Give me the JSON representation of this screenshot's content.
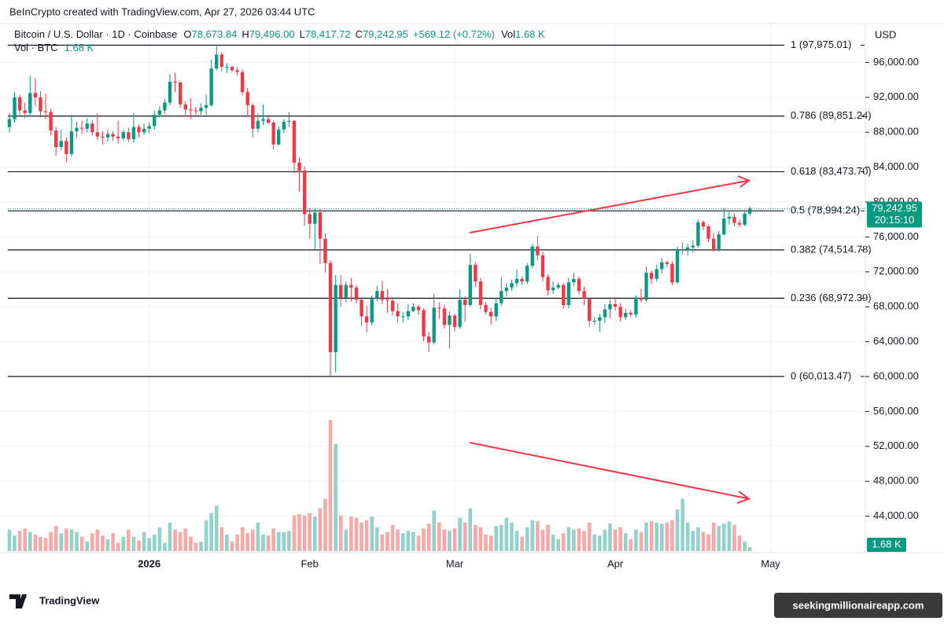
{
  "attribution": "BeInCrypto created with TradingView.com, Apr 27, 2026 03:44 UTC",
  "symbol": "Bitcoin / U.S. Dollar · 1D · Coinbase",
  "ohlc": [
    {
      "label": "O",
      "value": "78,673.84"
    },
    {
      "label": "H",
      "value": "79,496.00"
    },
    {
      "label": "L",
      "value": "78,417.72"
    },
    {
      "label": "C",
      "value": "79,242.95"
    }
  ],
  "change": "+569.12 (+0.72%)",
  "vol_label": "Vol",
  "vol_value": "1.68 K",
  "volume_indicator": {
    "label": "Vol · BTC",
    "value": "1.68 K"
  },
  "currency": "USD",
  "price_tag": "79,242.95",
  "countdown": "20:15:10",
  "volume_tag": "1.68 K",
  "logo_text": "TradingView",
  "watermark": "seekingmillionaireapp.com",
  "chart_data": {
    "type": "candlestick",
    "up_color": "#089981",
    "down_color": "#f23645",
    "up_volume_color": "#92d2cb",
    "down_volume_color": "#f7a9a7",
    "last_price_color": "#089981",
    "grid": true,
    "ylim": [
      40000,
      100000
    ],
    "yticks": [
      {
        "value": 96000,
        "label": "96,000.00"
      },
      {
        "value": 92000,
        "label": "92,000.00"
      },
      {
        "value": 88000,
        "label": "88,000.00"
      },
      {
        "value": 84000,
        "label": "84,000.00"
      },
      {
        "value": 80000,
        "label": "80,000.00"
      },
      {
        "value": 76000,
        "label": "76,000.00"
      },
      {
        "value": 72000,
        "label": "72,000.00"
      },
      {
        "value": 68000,
        "label": "68,000.00"
      },
      {
        "value": 64000,
        "label": "64,000.00"
      },
      {
        "value": 60000,
        "label": "60,000.00"
      },
      {
        "value": 56000,
        "label": "56,000.00"
      },
      {
        "value": 52000,
        "label": "52,000.00"
      },
      {
        "value": 48000,
        "label": "48,000.00"
      },
      {
        "value": 44000,
        "label": "44,000.00"
      }
    ],
    "xlim": [
      -0.6,
      165.3
    ],
    "xticks": [
      {
        "value": 27,
        "label": "2026"
      },
      {
        "value": 58,
        "label": "Feb"
      },
      {
        "value": 86,
        "label": "Mar"
      },
      {
        "value": 117,
        "label": "Apr"
      },
      {
        "value": 147,
        "label": "May"
      }
    ],
    "volume_lim": [
      0,
      66000
    ],
    "fib_levels": [
      {
        "value": 97975.01,
        "label": "1 (97,975.01)"
      },
      {
        "value": 89851.24,
        "label": "0.786 (89,851.24)"
      },
      {
        "value": 83473.7,
        "label": "0.618 (83,473.70)"
      },
      {
        "value": 78994.24,
        "label": "0.5 (78,994.24)"
      },
      {
        "value": 74514.78,
        "label": "0.382 (74,514.78)"
      },
      {
        "value": 68972.39,
        "label": "0.236 (68,972.39)"
      },
      {
        "value": 60013.47,
        "label": "0 (60,013.47)"
      }
    ],
    "last_price": 79242.95,
    "candles": [
      [
        88600,
        90200,
        88000,
        89500
      ],
      [
        89500,
        92600,
        89100,
        92000
      ],
      [
        92000,
        92300,
        90000,
        90500
      ],
      [
        90500,
        91400,
        89600,
        90200
      ],
      [
        90200,
        94500,
        89900,
        92500
      ],
      [
        92500,
        94200,
        91000,
        92000
      ],
      [
        92000,
        92700,
        89700,
        90400
      ],
      [
        90400,
        92400,
        89500,
        90300
      ],
      [
        90300,
        90700,
        87600,
        88200
      ],
      [
        88200,
        88600,
        85300,
        86300
      ],
      [
        86300,
        88300,
        85900,
        87000
      ],
      [
        87000,
        87400,
        84600,
        85500
      ],
      [
        85500,
        90000,
        85200,
        88100
      ],
      [
        88100,
        89200,
        87400,
        88500
      ],
      [
        88500,
        89300,
        87800,
        88400
      ],
      [
        88400,
        89600,
        88000,
        89000
      ],
      [
        89000,
        89400,
        87600,
        88000
      ],
      [
        88000,
        90200,
        87100,
        87500
      ],
      [
        87500,
        88100,
        86600,
        87400
      ],
      [
        87400,
        88300,
        86900,
        87800
      ],
      [
        87800,
        88100,
        87000,
        87500
      ],
      [
        87500,
        89300,
        86700,
        87300
      ],
      [
        87300,
        88300,
        87100,
        88000
      ],
      [
        88000,
        88500,
        86900,
        87200
      ],
      [
        87200,
        90200,
        86800,
        88600
      ],
      [
        88600,
        88900,
        87400,
        88000
      ],
      [
        88000,
        89000,
        87700,
        88400
      ],
      [
        88400,
        89100,
        87900,
        88700
      ],
      [
        88700,
        90500,
        88300,
        90000
      ],
      [
        90000,
        91000,
        89700,
        90500
      ],
      [
        90500,
        91800,
        90100,
        91400
      ],
      [
        91400,
        94700,
        91100,
        93800
      ],
      [
        93800,
        94800,
        92600,
        93700
      ],
      [
        93700,
        93900,
        90800,
        91200
      ],
      [
        91200,
        91600,
        89800,
        90600
      ],
      [
        90600,
        91900,
        89500,
        90500
      ],
      [
        90500,
        90900,
        90000,
        90400
      ],
      [
        90400,
        91300,
        90000,
        90800
      ],
      [
        90800,
        92300,
        90000,
        91100
      ],
      [
        91100,
        96300,
        90900,
        95300
      ],
      [
        95300,
        97975.01,
        95100,
        96900
      ],
      [
        96900,
        97200,
        95000,
        95500
      ],
      [
        95500,
        95900,
        94800,
        95500
      ],
      [
        95500,
        95600,
        94900,
        95100
      ],
      [
        95100,
        95500,
        94500,
        94900
      ],
      [
        94900,
        95200,
        92200,
        92600
      ],
      [
        92600,
        93100,
        89800,
        91100
      ],
      [
        91100,
        91300,
        87400,
        88400
      ],
      [
        88400,
        90200,
        88000,
        89300
      ],
      [
        89300,
        91200,
        88800,
        89500
      ],
      [
        89500,
        89800,
        88900,
        89100
      ],
      [
        89100,
        89300,
        86000,
        86600
      ],
      [
        86600,
        88700,
        86500,
        88300
      ],
      [
        88300,
        89500,
        87900,
        89200
      ],
      [
        89200,
        90300,
        88600,
        89300
      ],
      [
        89300,
        89400,
        83300,
        84500
      ],
      [
        84500,
        85100,
        81200,
        83600
      ],
      [
        83600,
        84100,
        77300,
        78600
      ],
      [
        78600,
        79300,
        75800,
        77500
      ],
      [
        77500,
        79300,
        74600,
        78800
      ],
      [
        78800,
        79200,
        72900,
        75800
      ],
      [
        75800,
        76400,
        71900,
        73000
      ],
      [
        73000,
        73300,
        60013.47,
        62800
      ],
      [
        62800,
        71600,
        60500,
        70500
      ],
      [
        70500,
        71600,
        68000,
        69000
      ],
      [
        69000,
        70900,
        68500,
        70500
      ],
      [
        70500,
        71300,
        68600,
        70200
      ],
      [
        70200,
        70500,
        68400,
        68800
      ],
      [
        68800,
        69100,
        65800,
        66900
      ],
      [
        66900,
        68100,
        65100,
        66200
      ],
      [
        66200,
        69300,
        65900,
        68900
      ],
      [
        68900,
        70400,
        68600,
        69800
      ],
      [
        69800,
        71000,
        68300,
        68800
      ],
      [
        68800,
        70000,
        67300,
        68700
      ],
      [
        68700,
        69100,
        67000,
        67500
      ],
      [
        67500,
        68400,
        66200,
        66900
      ],
      [
        66900,
        67400,
        66200,
        66900
      ],
      [
        66900,
        68300,
        66500,
        67500
      ],
      [
        67500,
        68400,
        67400,
        68000
      ],
      [
        68000,
        68200,
        67100,
        67600
      ],
      [
        67600,
        67800,
        64100,
        64600
      ],
      [
        64600,
        65100,
        62800,
        63900
      ],
      [
        63900,
        69500,
        63700,
        67900
      ],
      [
        67900,
        68500,
        66600,
        67800
      ],
      [
        67800,
        68200,
        65500,
        65900
      ],
      [
        65900,
        67500,
        63200,
        67000
      ],
      [
        67000,
        67200,
        65200,
        65700
      ],
      [
        65700,
        70000,
        65500,
        68800
      ],
      [
        68800,
        69200,
        66300,
        68200
      ],
      [
        68200,
        74100,
        68000,
        72800
      ],
      [
        72800,
        73100,
        70300,
        70900
      ],
      [
        70900,
        71300,
        67700,
        68200
      ],
      [
        68200,
        68600,
        67100,
        67400
      ],
      [
        67400,
        67900,
        65900,
        66900
      ],
      [
        66900,
        69000,
        66400,
        68400
      ],
      [
        68400,
        71400,
        68100,
        69800
      ],
      [
        69800,
        70700,
        69200,
        70200
      ],
      [
        70200,
        71100,
        69800,
        70700
      ],
      [
        70700,
        72300,
        70300,
        71200
      ],
      [
        71200,
        71500,
        70500,
        70900
      ],
      [
        70900,
        73000,
        70600,
        72700
      ],
      [
        72700,
        75200,
        72400,
        74900
      ],
      [
        74900,
        76100,
        73300,
        73900
      ],
      [
        73900,
        74300,
        70900,
        71400
      ],
      [
        71400,
        71700,
        69300,
        69900
      ],
      [
        69900,
        70900,
        69500,
        70200
      ],
      [
        70200,
        70800,
        70000,
        70500
      ],
      [
        70500,
        70700,
        67800,
        68200
      ],
      [
        68200,
        71300,
        67800,
        70800
      ],
      [
        70800,
        71900,
        70400,
        71200
      ],
      [
        71200,
        71500,
        69400,
        69800
      ],
      [
        69800,
        70300,
        68200,
        68900
      ],
      [
        68900,
        69000,
        65700,
        66400
      ],
      [
        66400,
        66800,
        65900,
        66400
      ],
      [
        66400,
        67200,
        65100,
        66800
      ],
      [
        66800,
        68300,
        66100,
        67700
      ],
      [
        67700,
        68800,
        66700,
        68300
      ],
      [
        68300,
        69100,
        67600,
        68000
      ],
      [
        68000,
        68400,
        66300,
        66800
      ],
      [
        66800,
        67800,
        66500,
        67300
      ],
      [
        67300,
        67600,
        66800,
        67100
      ],
      [
        67100,
        69300,
        66800,
        69000
      ],
      [
        69000,
        70100,
        68500,
        68800
      ],
      [
        68800,
        72600,
        68500,
        71900
      ],
      [
        71900,
        72200,
        70600,
        71200
      ],
      [
        71200,
        72800,
        70900,
        72300
      ],
      [
        72300,
        73600,
        71800,
        73100
      ],
      [
        73100,
        73300,
        72600,
        72900
      ],
      [
        72900,
        73200,
        70500,
        70800
      ],
      [
        70800,
        74900,
        70600,
        74500
      ],
      [
        74500,
        75400,
        74000,
        74600
      ],
      [
        74600,
        75200,
        73900,
        74800
      ],
      [
        74800,
        75600,
        74200,
        75000
      ],
      [
        75000,
        78000,
        74800,
        77700
      ],
      [
        77700,
        77900,
        76800,
        77200
      ],
      [
        77200,
        77400,
        75400,
        75800
      ],
      [
        75800,
        76500,
        74300,
        74500
      ],
      [
        74500,
        76700,
        74300,
        76300
      ],
      [
        76300,
        79300,
        76100,
        78100
      ],
      [
        78100,
        79000,
        77400,
        78300
      ],
      [
        78300,
        78700,
        77200,
        77600
      ],
      [
        77600,
        78000,
        77100,
        77400
      ],
      [
        77400,
        79000,
        77200,
        78673.84
      ],
      [
        78673.84,
        79496,
        78417.72,
        79242.95
      ]
    ],
    "volume": [
      9000,
      6500,
      8500,
      9500,
      8000,
      7000,
      6000,
      5500,
      8000,
      10500,
      7500,
      9500,
      9000,
      8000,
      6000,
      4000,
      7500,
      9000,
      6500,
      5000,
      7500,
      3500,
      6000,
      9000,
      6000,
      4500,
      8000,
      5500,
      7000,
      10000,
      3500,
      12000,
      9000,
      8000,
      9500,
      6000,
      3500,
      4000,
      13000,
      16000,
      19000,
      10000,
      7000,
      4000,
      7000,
      10000,
      7500,
      9000,
      12000,
      7000,
      6500,
      9500,
      8000,
      8000,
      8500,
      15000,
      15500,
      15000,
      16000,
      14500,
      18000,
      22000,
      55000,
      45000,
      15000,
      9000,
      14500,
      14000,
      12000,
      13000,
      14500,
      10000,
      7000,
      8000,
      11000,
      9000,
      7500,
      8500,
      8000,
      6500,
      9500,
      11500,
      17000,
      12000,
      9000,
      8500,
      9500,
      14000,
      12000,
      18000,
      11000,
      10000,
      7000,
      6500,
      10500,
      11000,
      14000,
      12000,
      8500,
      6000,
      10000,
      13000,
      12500,
      9000,
      11000,
      7000,
      5000,
      7500,
      10000,
      9000,
      9500,
      8500,
      12000,
      7000,
      6500,
      9000,
      11500,
      9000,
      10000,
      7500,
      5000,
      9000,
      8000,
      12000,
      12500,
      12000,
      11500,
      12000,
      13000,
      17500,
      22000,
      12000,
      8500,
      10000,
      8000,
      7000,
      12000,
      10500,
      11500,
      12500,
      11000,
      6500,
      4000,
      1680
    ]
  }
}
